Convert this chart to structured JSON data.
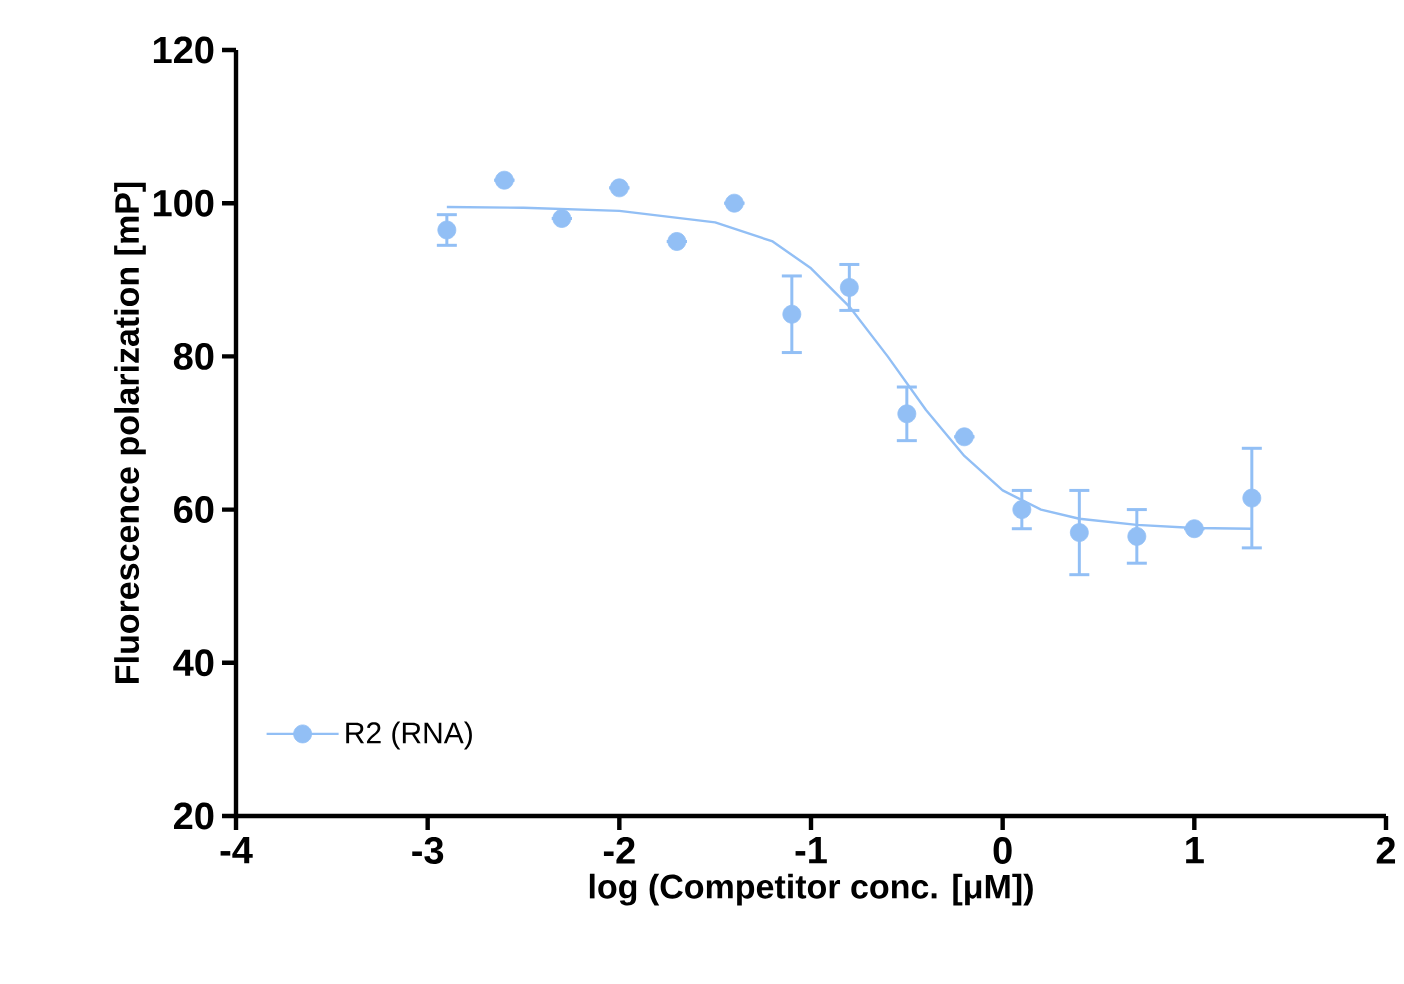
{
  "chart_data": {
    "type": "scatter",
    "xlabel": "log (Competitor conc. [μM])",
    "ylabel": "Fluorescence polarization [mP]",
    "xlim": [
      -4,
      2
    ],
    "xticks": [
      -4,
      -3,
      -2,
      -1,
      0,
      1,
      2
    ],
    "ylim": [
      20,
      120
    ],
    "yticks": [
      20,
      40,
      60,
      80,
      100,
      120
    ],
    "legend": "bottom left",
    "series": [
      {
        "name": "R2 (RNA)",
        "marker": "circle",
        "color": "#92bff5",
        "x": [
          -2.9,
          -2.6,
          -2.3,
          -2.0,
          -1.7,
          -1.4,
          -1.1,
          -0.8,
          -0.5,
          -0.2,
          0.1,
          0.4,
          0.7,
          1.0,
          1.3
        ],
        "values": [
          96.5,
          103,
          98,
          102,
          95,
          100,
          85.5,
          89,
          72.5,
          69.5,
          60,
          57,
          56.5,
          57.5,
          61.5
        ],
        "errors": [
          2,
          null,
          null,
          null,
          null,
          null,
          5,
          3,
          3.5,
          null,
          2.5,
          5.5,
          3.5,
          null,
          6.5
        ]
      },
      {
        "type": "line",
        "marker": "none",
        "line_style": "solid",
        "color": "#92bff5",
        "x": [
          -2.9,
          -2.5,
          -2.0,
          -1.5,
          -1.2,
          -1.0,
          -0.8,
          -0.6,
          -0.4,
          -0.2,
          0.0,
          0.2,
          0.4,
          0.7,
          1.0,
          1.3
        ],
        "values": [
          99.5,
          99.4,
          99,
          97.5,
          95,
          91.5,
          86.5,
          80,
          73,
          67,
          62.5,
          60,
          58.8,
          58,
          57.6,
          57.5
        ]
      }
    ]
  }
}
